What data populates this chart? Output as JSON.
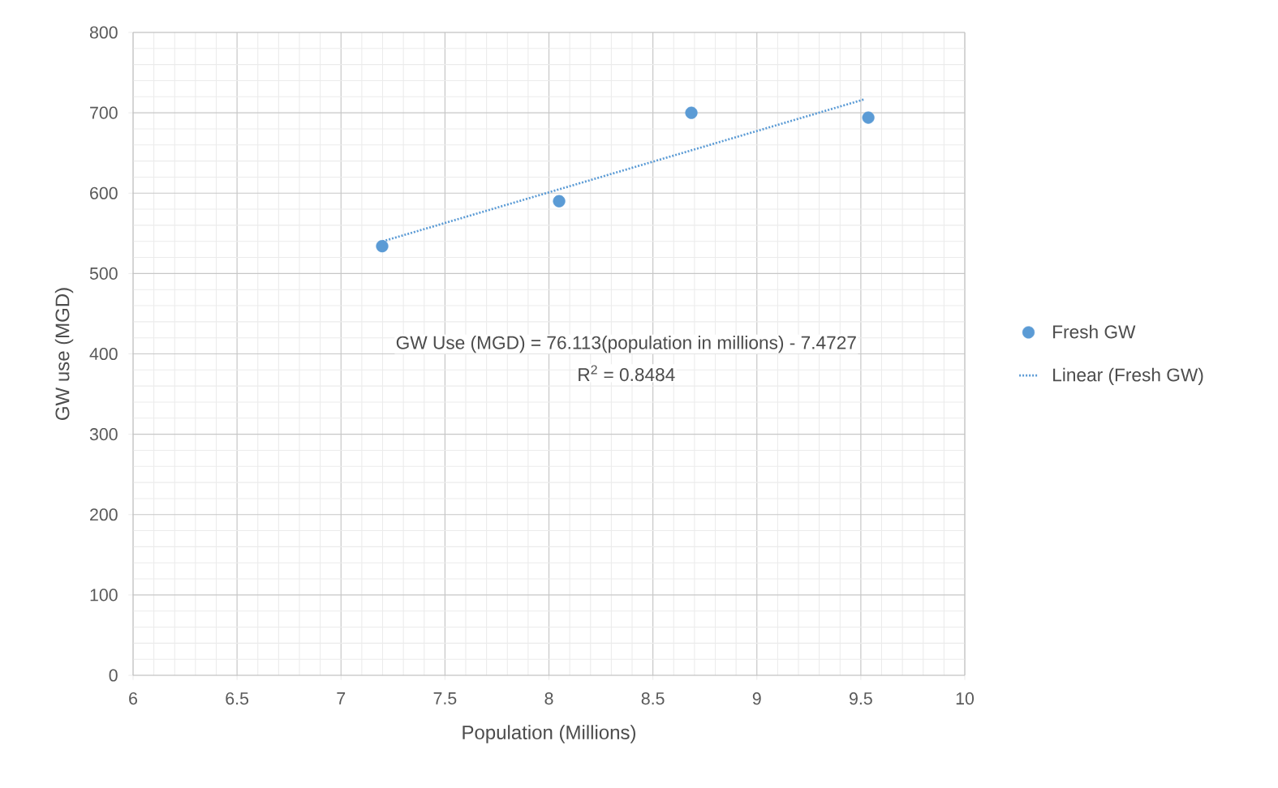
{
  "chart_data": {
    "type": "scatter",
    "xlabel": "Population (Millions)",
    "ylabel": "GW use (MGD)",
    "xlim": [
      6,
      10
    ],
    "xticks": [
      6,
      6.5,
      7,
      7.5,
      8,
      8.5,
      9,
      9.5,
      10
    ],
    "ylim": [
      0,
      800
    ],
    "yticks": [
      0,
      100,
      200,
      300,
      400,
      500,
      600,
      700,
      800
    ],
    "grid": true,
    "legend": "right",
    "annotations": [
      "GW Use (MGD) = 76.113(population in millions) - 7.4727",
      "R$^{2}$ = 0.8484"
    ],
    "series": [
      {
        "name": "Fresh  GW",
        "color": "#5b9bd5",
        "marker": "circle",
        "x": [
          7.198,
          8.049,
          8.685,
          9.536
        ],
        "values": [
          534,
          590,
          700,
          694
        ]
      },
      {
        "name": "Linear (Fresh  GW)",
        "type": "line",
        "color": "#5b9bd5",
        "marker": "none",
        "line_style": "dotted",
        "x": [
          7.2,
          9.52
        ],
        "values": [
          540,
          717
        ]
      }
    ]
  }
}
